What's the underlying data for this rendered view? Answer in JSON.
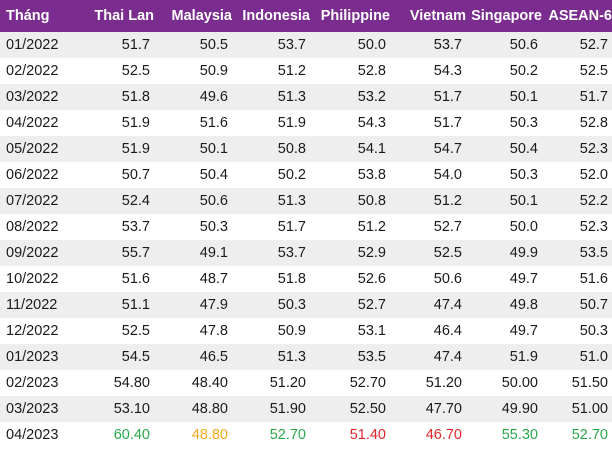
{
  "header": [
    "Tháng",
    "Thai Lan",
    "Malaysia",
    "Indonesia",
    "Philippine",
    "Vietnam",
    "Singapore",
    "ASEAN-6"
  ],
  "rows": [
    [
      "01/2022",
      "51.7",
      "50.5",
      "53.7",
      "50.0",
      "53.7",
      "50.6",
      "52.7"
    ],
    [
      "02/2022",
      "52.5",
      "50.9",
      "51.2",
      "52.8",
      "54.3",
      "50.2",
      "52.5"
    ],
    [
      "03/2022",
      "51.8",
      "49.6",
      "51.3",
      "53.2",
      "51.7",
      "50.1",
      "51.7"
    ],
    [
      "04/2022",
      "51.9",
      "51.6",
      "51.9",
      "54.3",
      "51.7",
      "50.3",
      "52.8"
    ],
    [
      "05/2022",
      "51.9",
      "50.1",
      "50.8",
      "54.1",
      "54.7",
      "50.4",
      "52.3"
    ],
    [
      "06/2022",
      "50.7",
      "50.4",
      "50.2",
      "53.8",
      "54.0",
      "50.3",
      "52.0"
    ],
    [
      "07/2022",
      "52.4",
      "50.6",
      "51.3",
      "50.8",
      "51.2",
      "50.1",
      "52.2"
    ],
    [
      "08/2022",
      "53.7",
      "50.3",
      "51.7",
      "51.2",
      "52.7",
      "50.0",
      "52.3"
    ],
    [
      "09/2022",
      "55.7",
      "49.1",
      "53.7",
      "52.9",
      "52.5",
      "49.9",
      "53.5"
    ],
    [
      "10/2022",
      "51.6",
      "48.7",
      "51.8",
      "52.6",
      "50.6",
      "49.7",
      "51.6"
    ],
    [
      "11/2022",
      "51.1",
      "47.9",
      "50.3",
      "52.7",
      "47.4",
      "49.8",
      "50.7"
    ],
    [
      "12/2022",
      "52.5",
      "47.8",
      "50.9",
      "53.1",
      "46.4",
      "49.7",
      "50.3"
    ],
    [
      "01/2023",
      "54.5",
      "46.5",
      "51.3",
      "53.5",
      "47.4",
      "51.9",
      "51.0"
    ],
    [
      "02/2023",
      "54.80",
      "48.40",
      "51.20",
      "52.70",
      "51.20",
      "50.00",
      "51.50"
    ],
    [
      "03/2023",
      "53.10",
      "48.80",
      "51.90",
      "52.50",
      "47.70",
      "49.90",
      "51.00"
    ],
    [
      "04/2023",
      "60.40",
      "48.80",
      "52.70",
      "51.40",
      "46.70",
      "55.30",
      "52.70"
    ]
  ],
  "colors": {
    "header_bg": "#7b2d8f",
    "header_text": "#ffffff",
    "stripe": "#eeeeee",
    "text": "#1a1a1a",
    "highlight_row_index": 15,
    "highlight_colors": [
      "#1a1a1a",
      "#2aa84a",
      "#f2a81d",
      "#2aa84a",
      "#e3262d",
      "#e3262d",
      "#2aa84a",
      "#2aa84a"
    ]
  }
}
